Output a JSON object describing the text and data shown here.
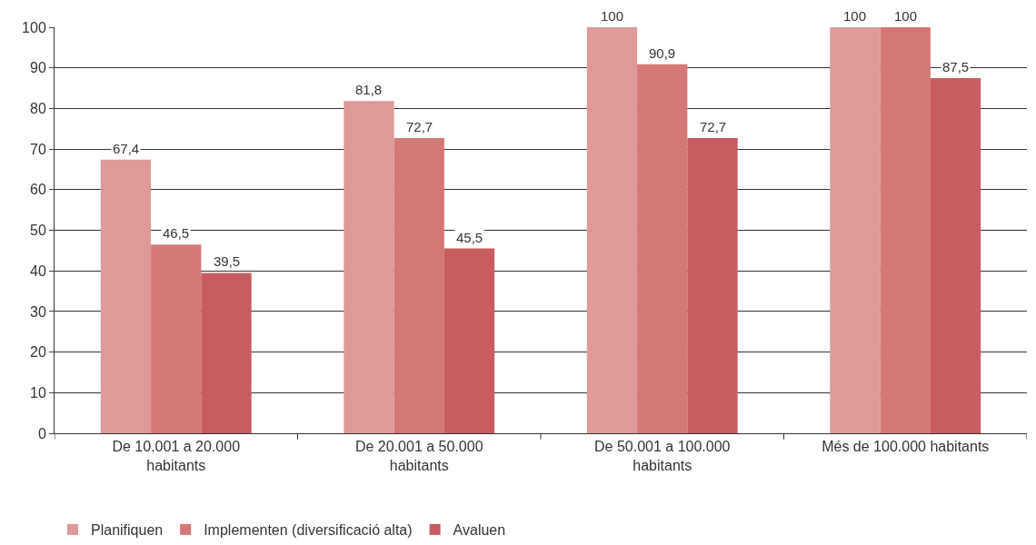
{
  "chart_data": {
    "type": "bar",
    "categories": [
      "De 10.001 a 20.000 habitants",
      "De 20.001 a 50.000 habitants",
      "De 50.001 a 100.000 habitants",
      "Més de 100.000 habitants"
    ],
    "series": [
      {
        "name": "Planifiquen",
        "color": "#dd9a97",
        "values": [
          67.4,
          81.8,
          100,
          100
        ],
        "value_labels": [
          "67,4",
          "81,8",
          "100",
          "100"
        ]
      },
      {
        "name": "Implementen (diversificació alta)",
        "color": "#d47876",
        "values": [
          46.5,
          72.7,
          90.9,
          100
        ],
        "value_labels": [
          "46,5",
          "72,7",
          "90,9",
          "100"
        ]
      },
      {
        "name": "Avaluen",
        "color": "#c95c60",
        "values": [
          39.5,
          45.5,
          72.7,
          87.5
        ],
        "value_labels": [
          "39,5",
          "45,5",
          "72,7",
          "87,5"
        ]
      }
    ],
    "ylim": [
      0,
      100
    ],
    "yticks": [
      0,
      10,
      20,
      30,
      40,
      50,
      60,
      70,
      80,
      90,
      100
    ],
    "grid": "y",
    "legend": "bottom left"
  }
}
